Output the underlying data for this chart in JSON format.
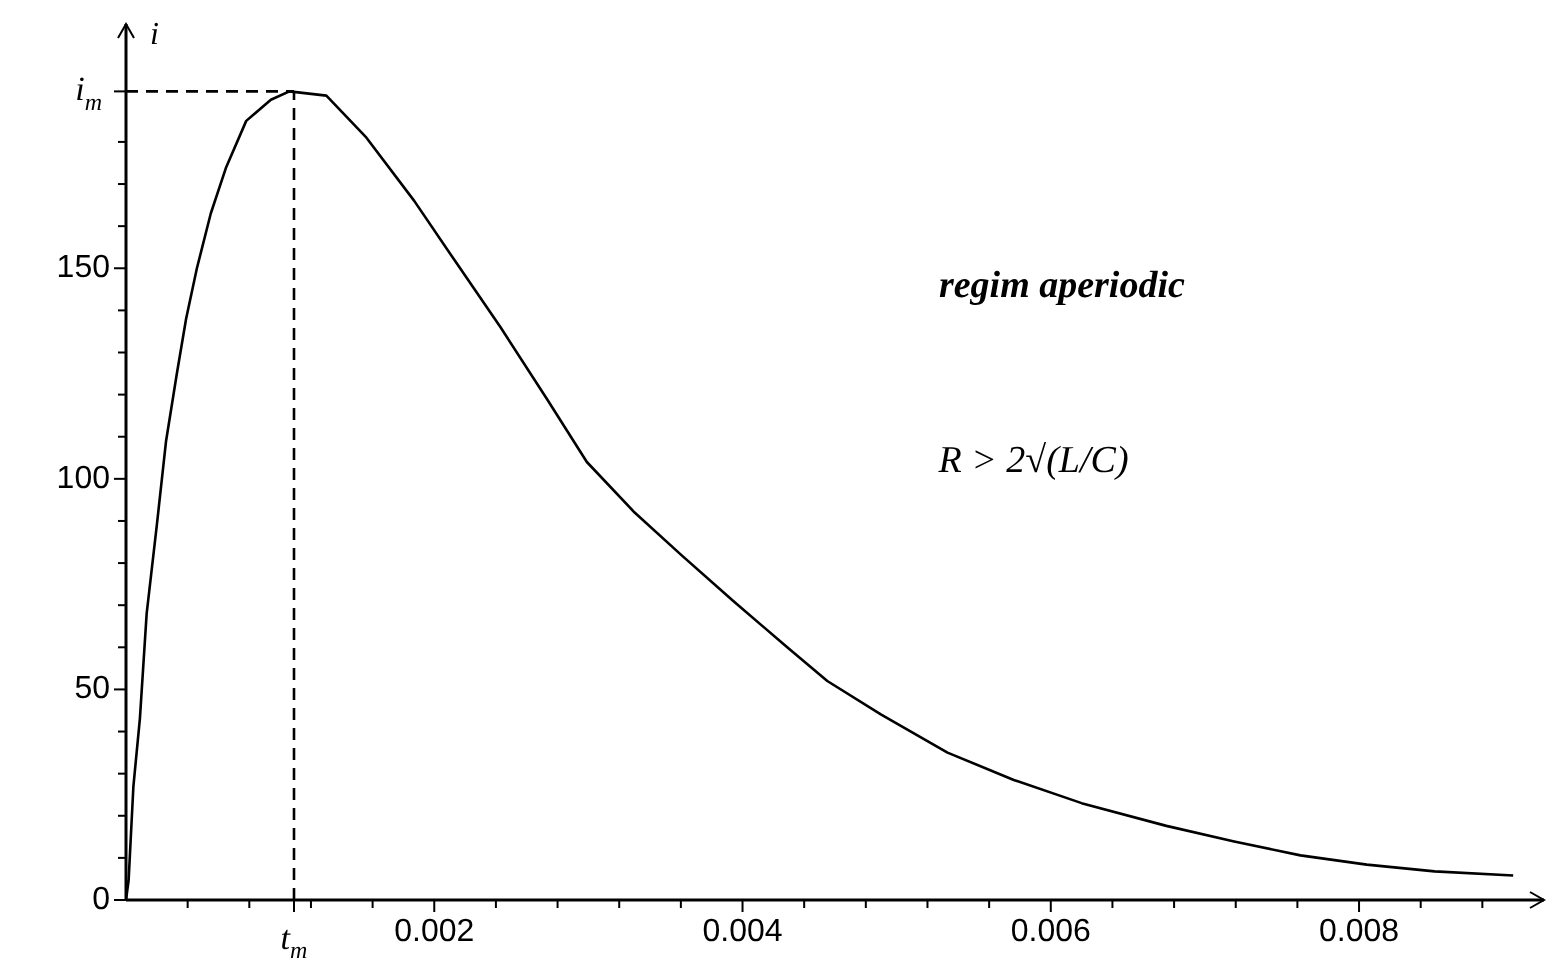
{
  "chart_data": {
    "type": "line",
    "ylabel": "i",
    "xlim": [
      0,
      0.0092
    ],
    "ylim": [
      0,
      208
    ],
    "xticks": [
      {
        "value": 0.0004,
        "label": null
      },
      {
        "value": 0.0008,
        "label": null
      },
      {
        "value": 0.00109,
        "label": "t$_{m}$"
      },
      {
        "value": 0.0012,
        "label": null
      },
      {
        "value": 0.0016,
        "label": null
      },
      {
        "value": 0.002,
        "label": "0.002"
      },
      {
        "value": 0.0024,
        "label": null
      },
      {
        "value": 0.0028,
        "label": null
      },
      {
        "value": 0.0032,
        "label": null
      },
      {
        "value": 0.0036,
        "label": null
      },
      {
        "value": 0.004,
        "label": "0.004"
      },
      {
        "value": 0.0044,
        "label": null
      },
      {
        "value": 0.0048,
        "label": null
      },
      {
        "value": 0.0052,
        "label": null
      },
      {
        "value": 0.0056,
        "label": null
      },
      {
        "value": 0.006,
        "label": "0.006"
      },
      {
        "value": 0.0064,
        "label": null
      },
      {
        "value": 0.0068,
        "label": null
      },
      {
        "value": 0.0072,
        "label": null
      },
      {
        "value": 0.0076,
        "label": null
      },
      {
        "value": 0.008,
        "label": "0.008"
      },
      {
        "value": 0.0084,
        "label": null
      },
      {
        "value": 0.0088,
        "label": null
      }
    ],
    "yticks": [
      0,
      {
        "value": 10,
        "label": null
      },
      {
        "value": 20,
        "label": null
      },
      {
        "value": 30,
        "label": null
      },
      {
        "value": 40,
        "label": null
      },
      50,
      {
        "value": 60,
        "label": null
      },
      {
        "value": 70,
        "label": null
      },
      {
        "value": 80,
        "label": null
      },
      {
        "value": 90,
        "label": null
      },
      100,
      {
        "value": 110,
        "label": null
      },
      {
        "value": 120,
        "label": null
      },
      {
        "value": 130,
        "label": null
      },
      {
        "value": 140,
        "label": null
      },
      150,
      {
        "value": 160,
        "label": null
      },
      {
        "value": 170,
        "label": null
      },
      {
        "value": 180,
        "label": null
      },
      {
        "value": 192,
        "label": "i$_{m}$"
      }
    ],
    "ref_lines": [
      {
        "axis": "y",
        "value": 192,
        "line_style": "dashed"
      },
      {
        "axis": "x",
        "value": 0.00109,
        "line_style": "dashed"
      }
    ],
    "annotations": [
      "regim aperiodic",
      "R > 2√(L/C)"
    ],
    "marker": "none",
    "line_style": "solid",
    "series": [
      {
        "color": "#000000",
        "x": [
          0,
          1.7e-05,
          4.8e-05,
          9e-05,
          0.000134,
          0.0002,
          0.00026,
          0.00033,
          0.00039,
          0.00046,
          0.00055,
          0.00065,
          0.00078,
          0.00094,
          0.00106,
          0.0013,
          0.00156,
          0.00187,
          0.00213,
          0.00243,
          0.00273,
          0.00299,
          0.0033,
          0.0036,
          0.00394,
          0.00429,
          0.00455,
          0.0049,
          0.00533,
          0.00576,
          0.0062,
          0.00675,
          0.00719,
          0.00762,
          0.00805,
          0.00849,
          0.009
        ],
        "values": [
          0,
          4.7,
          27,
          43,
          68,
          89,
          109,
          125,
          138,
          150,
          163,
          174,
          185,
          190,
          192,
          191,
          181,
          166,
          152,
          136,
          119,
          104,
          92,
          82,
          71,
          60,
          52,
          44,
          35,
          28.5,
          23,
          17.6,
          13.9,
          10.6,
          8.4,
          6.8,
          5.8
        ]
      }
    ]
  }
}
